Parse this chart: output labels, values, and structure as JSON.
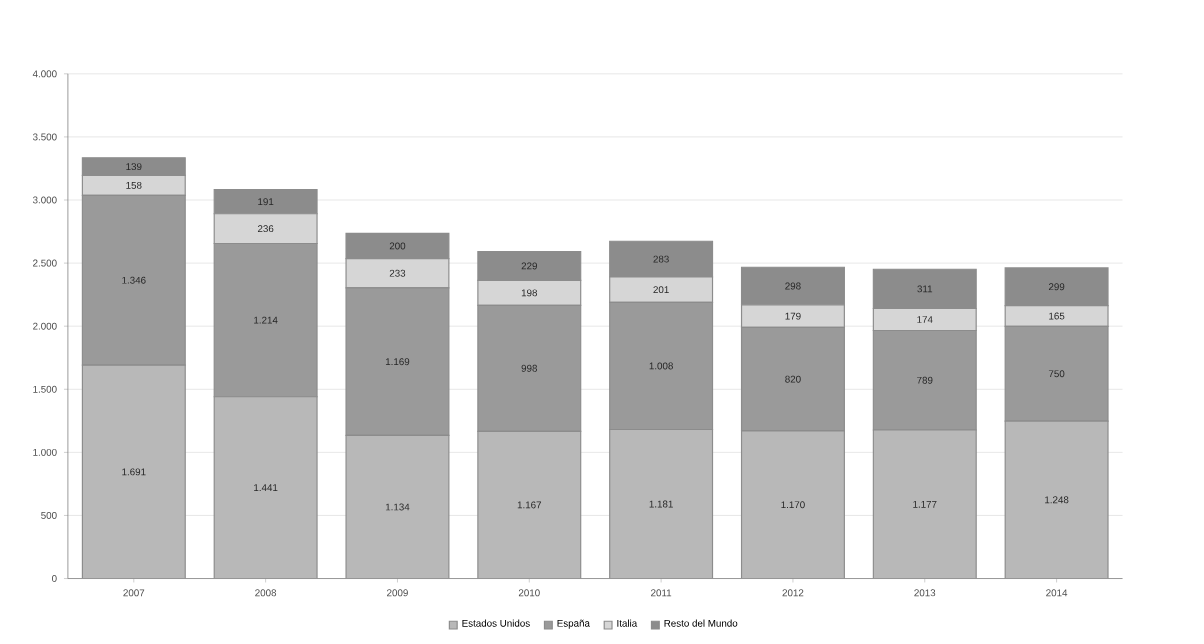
{
  "chart_data": {
    "type": "bar",
    "stacked": true,
    "categories": [
      "2007",
      "2008",
      "2009",
      "2010",
      "2011",
      "2012",
      "2013",
      "2014"
    ],
    "series": [
      {
        "name": "Estados Unidos",
        "color": "#b8b8b8",
        "values": [
          1691,
          1441,
          1134,
          1167,
          1181,
          1170,
          1177,
          1248
        ],
        "value_labels": [
          "1.691",
          "1.441",
          "1.134",
          "1.167",
          "1.181",
          "1.170",
          "1.177",
          "1.248"
        ]
      },
      {
        "name": "España",
        "color": "#9a9a9a",
        "values": [
          1346,
          1214,
          1169,
          998,
          1008,
          820,
          789,
          750
        ],
        "value_labels": [
          "1.346",
          "1.214",
          "1.169",
          "998",
          "1.008",
          "820",
          "789",
          "750"
        ]
      },
      {
        "name": "Italia",
        "color": "#d6d6d6",
        "values": [
          158,
          236,
          233,
          198,
          201,
          179,
          174,
          165
        ],
        "value_labels": [
          "158",
          "236",
          "233",
          "198",
          "201",
          "179",
          "174",
          "165"
        ]
      },
      {
        "name": "Resto del Mundo",
        "color": "#8c8c8c",
        "values": [
          139,
          191,
          200,
          229,
          283,
          298,
          311,
          299
        ],
        "value_labels": [
          "139",
          "191",
          "200",
          "229",
          "283",
          "298",
          "311",
          "299"
        ]
      }
    ],
    "ylim": [
      0,
      4000
    ],
    "yticks": [
      {
        "value": 0,
        "label": "0"
      },
      {
        "value": 500,
        "label": "500"
      },
      {
        "value": 1000,
        "label": "1.000"
      },
      {
        "value": 1500,
        "label": "1.500"
      },
      {
        "value": 2000,
        "label": "2.000"
      },
      {
        "value": 2500,
        "label": "2.500"
      },
      {
        "value": 3000,
        "label": "3.000"
      },
      {
        "value": 3500,
        "label": "3.500"
      },
      {
        "value": 4000,
        "label": "4.000"
      }
    ],
    "grid": "y",
    "legend": "bottom"
  }
}
